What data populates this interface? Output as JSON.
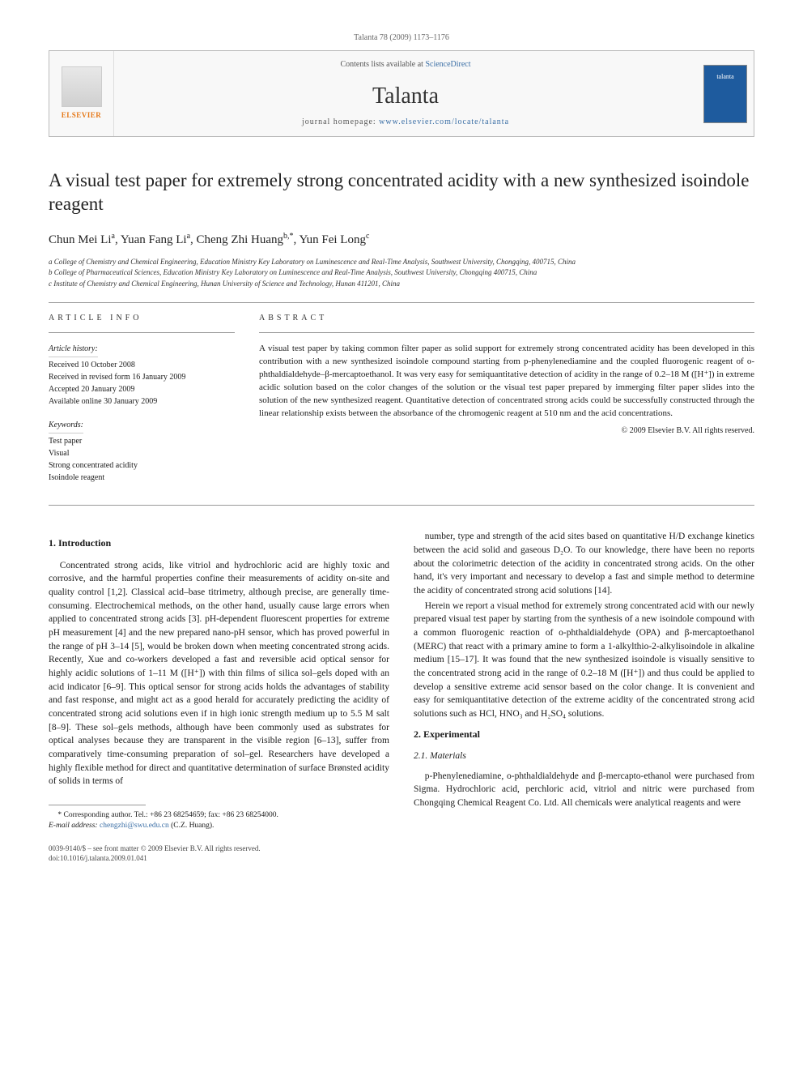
{
  "header": {
    "citation": "Talanta 78 (2009) 1173–1176",
    "contents_prefix": "Contents lists available at ",
    "contents_link": "ScienceDirect",
    "journal_name": "Talanta",
    "homepage_prefix": "journal homepage: ",
    "homepage_url": "www.elsevier.com/locate/talanta",
    "elsevier_label": "ELSEVIER",
    "cover_label": "talanta"
  },
  "title": "A visual test paper for extremely strong concentrated acidity with a new synthesized isoindole reagent",
  "authors_html": "Chun Mei Li<sup>a</sup>, Yuan Fang Li<sup>a</sup>, Cheng Zhi Huang<sup>b,*</sup>, Yun Fei Long<sup>c</sup>",
  "affiliations": [
    "a College of Chemistry and Chemical Engineering, Education Ministry Key Laboratory on Luminescence and Real-Time Analysis, Southwest University, Chongqing, 400715, China",
    "b College of Pharmaceutical Sciences, Education Ministry Key Laboratory on Luminescence and Real-Time Analysis, Southwest University, Chongqing 400715, China",
    "c Institute of Chemistry and Chemical Engineering, Hunan University of Science and Technology, Hunan 411201, China"
  ],
  "article_info": {
    "heading": "article info",
    "history_label": "Article history:",
    "history": [
      "Received 10 October 2008",
      "Received in revised form 16 January 2009",
      "Accepted 20 January 2009",
      "Available online 30 January 2009"
    ],
    "keywords_label": "Keywords:",
    "keywords": [
      "Test paper",
      "Visual",
      "Strong concentrated acidity",
      "Isoindole reagent"
    ]
  },
  "abstract": {
    "heading": "abstract",
    "text": "A visual test paper by taking common filter paper as solid support for extremely strong concentrated acidity has been developed in this contribution with a new synthesized isoindole compound starting from p-phenylenediamine and the coupled fluorogenic reagent of o-phthaldialdehyde–β-mercaptoethanol. It was very easy for semiquantitative detection of acidity in the range of 0.2–18 M ([H⁺]) in extreme acidic solution based on the color changes of the solution or the visual test paper prepared by immerging filter paper slides into the solution of the new synthesized reagent. Quantitative detection of concentrated strong acids could be successfully constructed through the linear relationship exists between the absorbance of the chromogenic reagent at 510 nm and the acid concentrations.",
    "copyright": "© 2009 Elsevier B.V. All rights reserved."
  },
  "body": {
    "intro_heading": "1. Introduction",
    "intro_p1": "Concentrated strong acids, like vitriol and hydrochloric acid are highly toxic and corrosive, and the harmful properties confine their measurements of acidity on-site and quality control [1,2]. Classical acid–base titrimetry, although precise, are generally time-consuming. Electrochemical methods, on the other hand, usually cause large errors when applied to concentrated strong acids [3]. pH-dependent fluorescent properties for extreme pH measurement [4] and the new prepared nano-pH sensor, which has proved powerful in the range of pH 3–14 [5], would be broken down when meeting concentrated strong acids. Recently, Xue and co-workers developed a fast and reversible acid optical sensor for highly acidic solutions of 1–11 M ([H⁺]) with thin films of silica sol–gels doped with an acid indicator [6–9]. This optical sensor for strong acids holds the advantages of stability and fast response, and might act as a good herald for accurately predicting the acidity of concentrated strong acid solutions even if in high ionic strength medium up to 5.5 M salt [8–9]. These sol–gels methods, although have been commonly used as substrates for optical analyses because they are transparent in the visible region [6–13], suffer from comparatively time-consuming preparation of sol–gel. Researchers have developed a highly flexible method for direct and quantitative determination of surface Brønsted acidity of solids in terms of",
    "intro_p2": "number, type and strength of the acid sites based on quantitative H/D exchange kinetics between the acid solid and gaseous D₂O. To our knowledge, there have been no reports about the colorimetric detection of the acidity in concentrated strong acids. On the other hand, it's very important and necessary to develop a fast and simple method to determine the acidity of concentrated strong acid solutions [14].",
    "intro_p3": "Herein we report a visual method for extremely strong concentrated acid with our newly prepared visual test paper by starting from the synthesis of a new isoindole compound with a common fluorogenic reaction of o-phthaldialdehyde (OPA) and β-mercaptoethanol (MERC) that react with a primary amine to form a 1-alkylthio-2-alkylisoindole in alkaline medium [15–17]. It was found that the new synthesized isoindole is visually sensitive to the concentrated strong acid in the range of 0.2–18 M ([H⁺]) and thus could be applied to develop a sensitive extreme acid sensor based on the color change. It is convenient and easy for semiquantitative detection of the extreme acidity of the concentrated strong acid solutions such as HCl, HNO₃ and H₂SO₄ solutions.",
    "exp_heading": "2. Experimental",
    "materials_heading": "2.1. Materials",
    "materials_p": "p-Phenylenediamine, o-phthaldialdehyde and β-mercapto-ethanol were purchased from Sigma. Hydrochloric acid, perchloric acid, vitriol and nitric were purchased from Chongqing Chemical Reagent Co. Ltd. All chemicals were analytical reagents and were"
  },
  "footnote": {
    "corr": "* Corresponding author. Tel.: +86 23 68254659; fax: +86 23 68254000.",
    "email_label": "E-mail address:",
    "email": "chengzhi@swu.edu.cn",
    "email_suffix": "(C.Z. Huang)."
  },
  "footer": {
    "line1": "0039-9140/$ – see front matter © 2009 Elsevier B.V. All rights reserved.",
    "doi": "doi:10.1016/j.talanta.2009.01.041"
  },
  "colors": {
    "link": "#3a6ea5",
    "elsevier_orange": "#e67817",
    "talanta_blue": "#1e5b9e",
    "border_gray": "#bbbbbb",
    "text": "#1a1a1a"
  }
}
